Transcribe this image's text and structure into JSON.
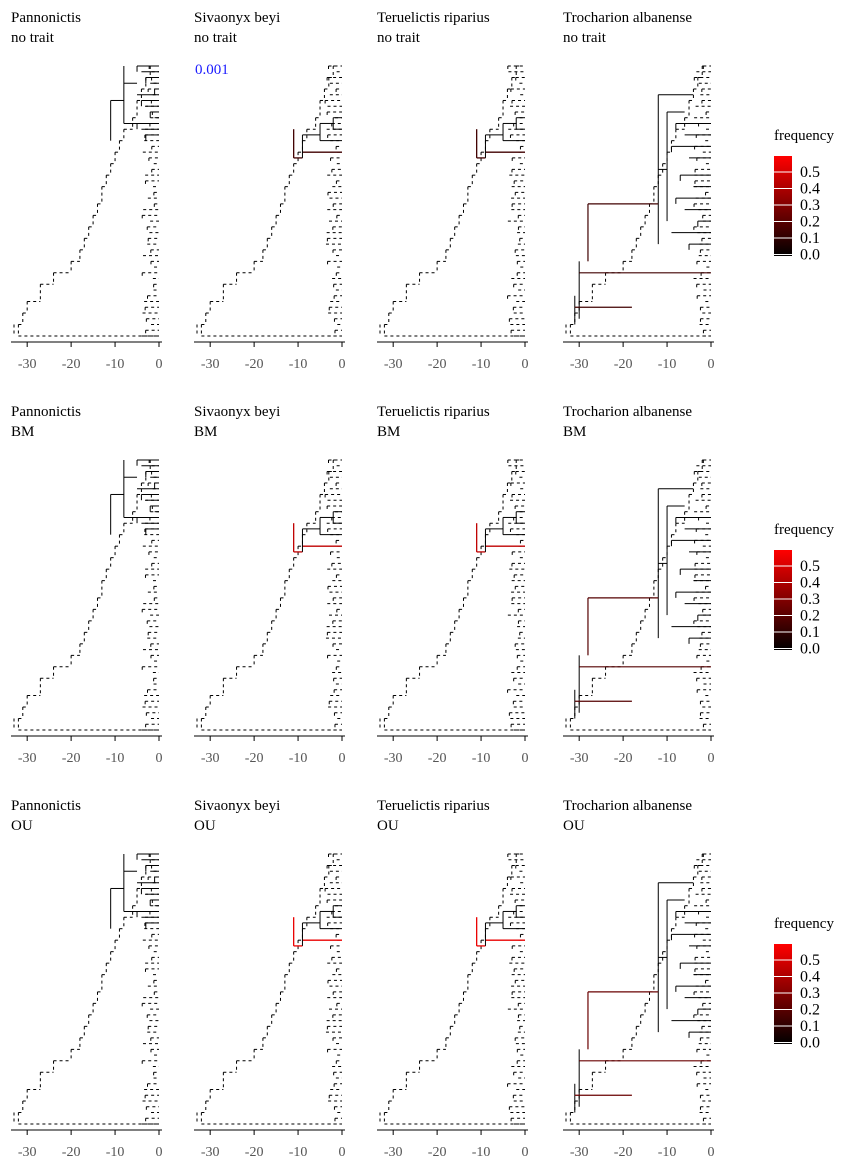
{
  "panels": [
    {
      "taxon": "Pannonictis",
      "model": "no trait",
      "highlight": "pann",
      "hl_freq": 0.0
    },
    {
      "taxon": "Sivaonyx beyi",
      "model": "no trait",
      "annotation": "0.001",
      "highlight": "siva",
      "hl_freq": 0.15
    },
    {
      "taxon": "Teruelictis riparius",
      "model": "no trait",
      "highlight": "teru",
      "hl_freq": 0.15
    },
    {
      "taxon": "Trocharion albanense",
      "model": "no trait",
      "highlight": "troc",
      "hl_freq": 0.15
    },
    {
      "taxon": "Pannonictis",
      "model": "BM",
      "highlight": "pann",
      "hl_freq": 0.0
    },
    {
      "taxon": "Sivaonyx beyi",
      "model": "BM",
      "highlight": "siva",
      "hl_freq": 0.45
    },
    {
      "taxon": "Teruelictis riparius",
      "model": "BM",
      "highlight": "teru",
      "hl_freq": 0.45
    },
    {
      "taxon": "Trocharion albanense",
      "model": "BM",
      "highlight": "troc",
      "hl_freq": 0.2
    },
    {
      "taxon": "Pannonictis",
      "model": "OU",
      "highlight": "pann",
      "hl_freq": 0.0
    },
    {
      "taxon": "Sivaonyx beyi",
      "model": "OU",
      "highlight": "siva",
      "hl_freq": 0.55
    },
    {
      "taxon": "Teruelictis riparius",
      "model": "OU",
      "highlight": "teru",
      "hl_freq": 0.55
    },
    {
      "taxon": "Trocharion albanense",
      "model": "OU",
      "highlight": "troc",
      "hl_freq": 0.25
    }
  ],
  "x_axis": {
    "ticks": [
      -30,
      -20,
      -10,
      0
    ],
    "range": [
      -33,
      0
    ]
  },
  "legend": {
    "title": "frequency",
    "ticks": [
      "0.5",
      "0.4",
      "0.3",
      "0.2",
      "0.1",
      "0.0"
    ],
    "max": 0.6,
    "colors": {
      "low": "#000000",
      "high": "#ff0000"
    }
  }
}
